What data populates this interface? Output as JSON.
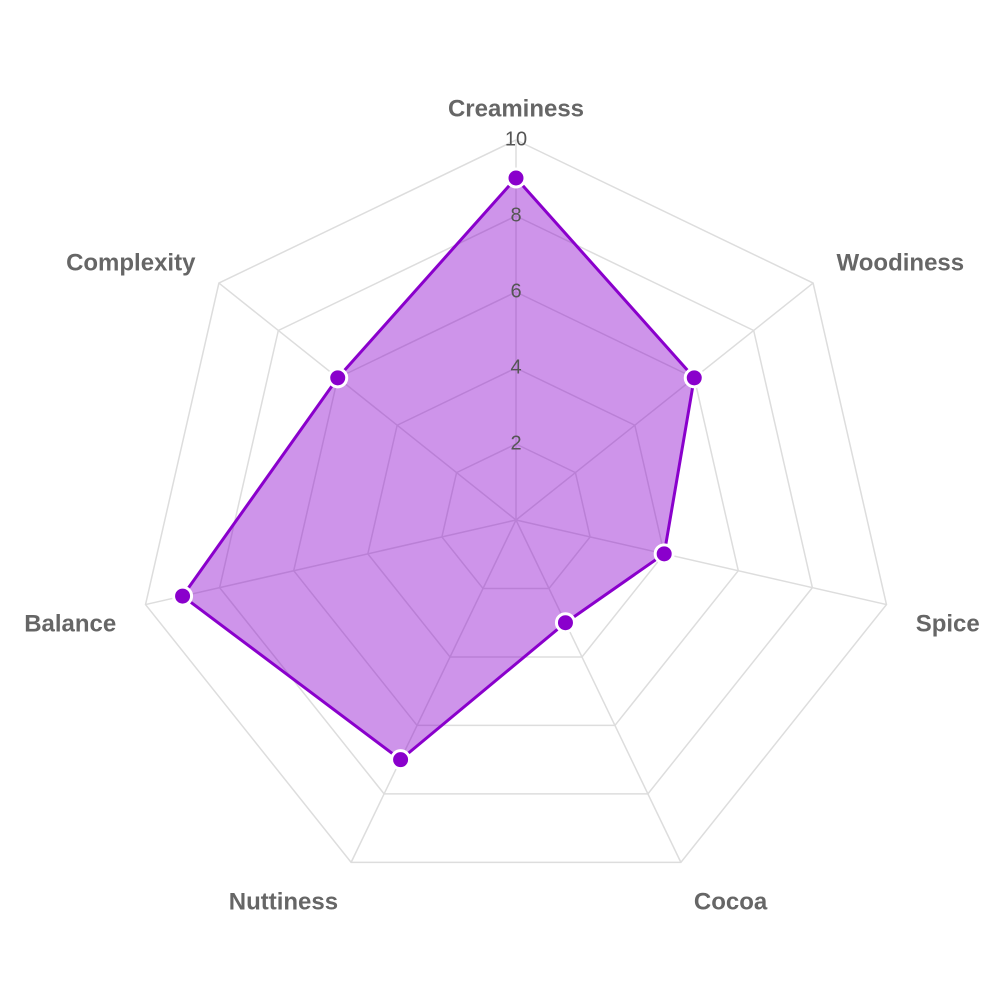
{
  "chart_data": {
    "type": "radar",
    "categories": [
      "Creaminess",
      "Woodiness",
      "Spice",
      "Cocoa",
      "Nuttiness",
      "Balance",
      "Complexity"
    ],
    "values": [
      9,
      6,
      4,
      3,
      7,
      9,
      6
    ],
    "color": "#8a00cc",
    "rlim": [
      0,
      10
    ],
    "rticks": [
      2,
      4,
      6,
      8,
      10
    ],
    "grid": true
  }
}
